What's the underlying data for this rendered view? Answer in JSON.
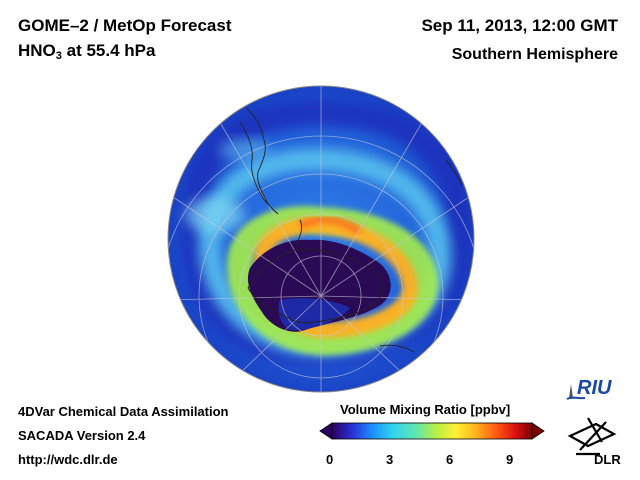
{
  "header": {
    "title_line1": "GOME–2 / MetOp Forecast",
    "species": "HNO",
    "species_sub": "3",
    "level": " at 55.4 hPa",
    "date": "Sep 11, 2013, 12:00 GMT",
    "hemisphere": "Southern Hemisphere"
  },
  "footer": {
    "line1": "4DVar Chemical Data Assimilation",
    "line2": "SACADA Version 2.4",
    "line3": "http://wdc.dlr.de"
  },
  "colorbar": {
    "title": "Volume Mixing Ratio [ppbv]",
    "ticks": [
      "0",
      "3",
      "6",
      "9"
    ],
    "range": [
      0,
      10
    ],
    "colors": [
      "#2a0060",
      "#2b2fd6",
      "#1c8dfc",
      "#2fd3f0",
      "#5fe6b0",
      "#b9ef45",
      "#fff033",
      "#ffb21d",
      "#ff5a14",
      "#d80f10",
      "#7a0000"
    ]
  },
  "logos": {
    "riu": "RIU",
    "dlr": "DLR"
  },
  "map": {
    "projection": "orthographic, South Pole centered",
    "field": "HNO3 volume mixing ratio",
    "colors": {
      "ocean_background": "#1c62d6",
      "polar_vortex_core": "#2a0a55",
      "collar_high": "#ffb020",
      "collar_mid": "#bfef45",
      "midlat_cyan": "#56c8f0"
    }
  }
}
